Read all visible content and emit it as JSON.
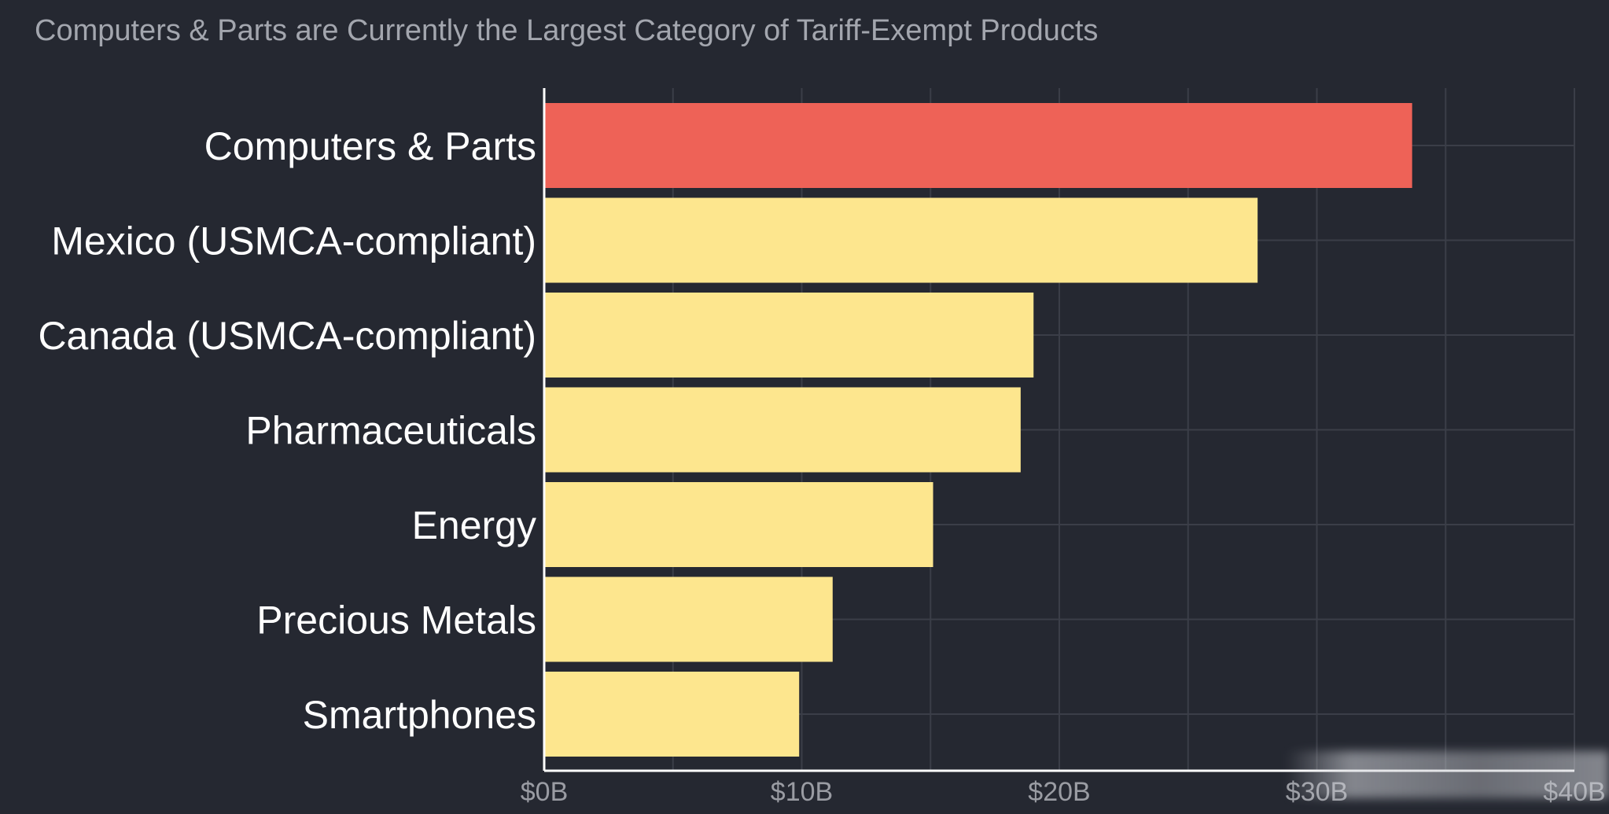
{
  "chart_data": {
    "type": "bar",
    "orientation": "horizontal",
    "title": "Computers & Parts are Currently the Largest Category of Tariff-Exempt Products",
    "categories": [
      "Computers & Parts",
      "Mexico (USMCA-compliant)",
      "Canada (USMCA-compliant)",
      "Pharmaceuticals",
      "Energy",
      "Precious Metals",
      "Smartphones"
    ],
    "values": [
      33.7,
      27.7,
      19.0,
      18.5,
      15.1,
      11.2,
      9.9
    ],
    "unit": "USD billions",
    "xlim": [
      0,
      40
    ],
    "xticks": [
      0,
      10,
      20,
      30,
      40
    ],
    "xtick_labels": [
      "$0B",
      "$10B",
      "$20B",
      "$30B",
      "$40B"
    ],
    "xlabel": "",
    "ylabel": "",
    "grid": true,
    "highlight_index": 0,
    "colors": {
      "highlight": "#ee6257",
      "bar": "#fde68e",
      "background": "#252831",
      "grid": "#3b3e48",
      "axis": "#ffffff",
      "title": "#a3a6ae",
      "label": "#ffffff",
      "tick": "#9a9ca3"
    }
  }
}
